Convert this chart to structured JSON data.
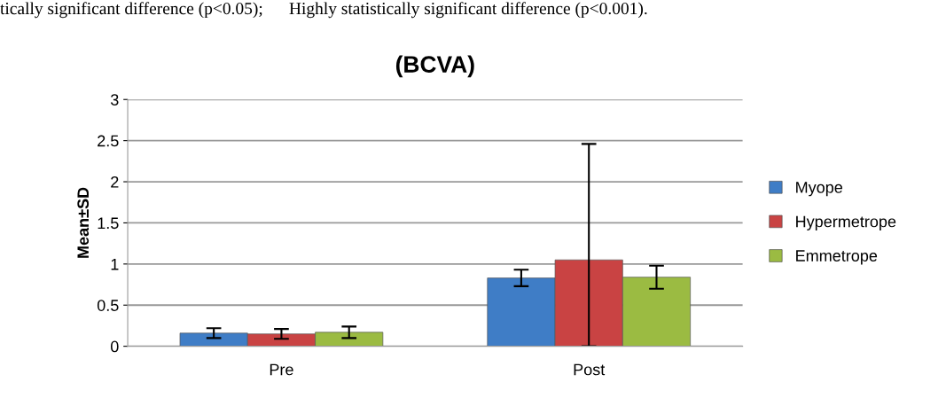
{
  "chart_data": {
    "type": "bar",
    "title": "(BCVA)",
    "ylabel": "Mean±SD",
    "annotations": [
      "tically significant difference (p<0.05);      Highly statistically significant difference (p<0.001)."
    ],
    "categories": [
      "Pre",
      "Post"
    ],
    "series": [
      {
        "name": "Myope",
        "color": "#3f7dc6",
        "values": [
          0.16,
          0.83
        ],
        "errors": [
          0.06,
          0.1
        ]
      },
      {
        "name": "Hypermetrope",
        "color": "#c94343",
        "values": [
          0.15,
          1.05
        ],
        "errors": [
          0.06,
          [
            0,
            2.46
          ]
        ]
      },
      {
        "name": "Emmetrope",
        "color": "#9bbb42",
        "values": [
          0.17,
          0.84
        ],
        "errors": [
          0.07,
          0.14
        ]
      }
    ],
    "ylim": [
      0,
      3
    ],
    "yticks": [
      0,
      0.5,
      1,
      1.5,
      2,
      2.5,
      3
    ],
    "grid": "y",
    "legend": "right"
  }
}
